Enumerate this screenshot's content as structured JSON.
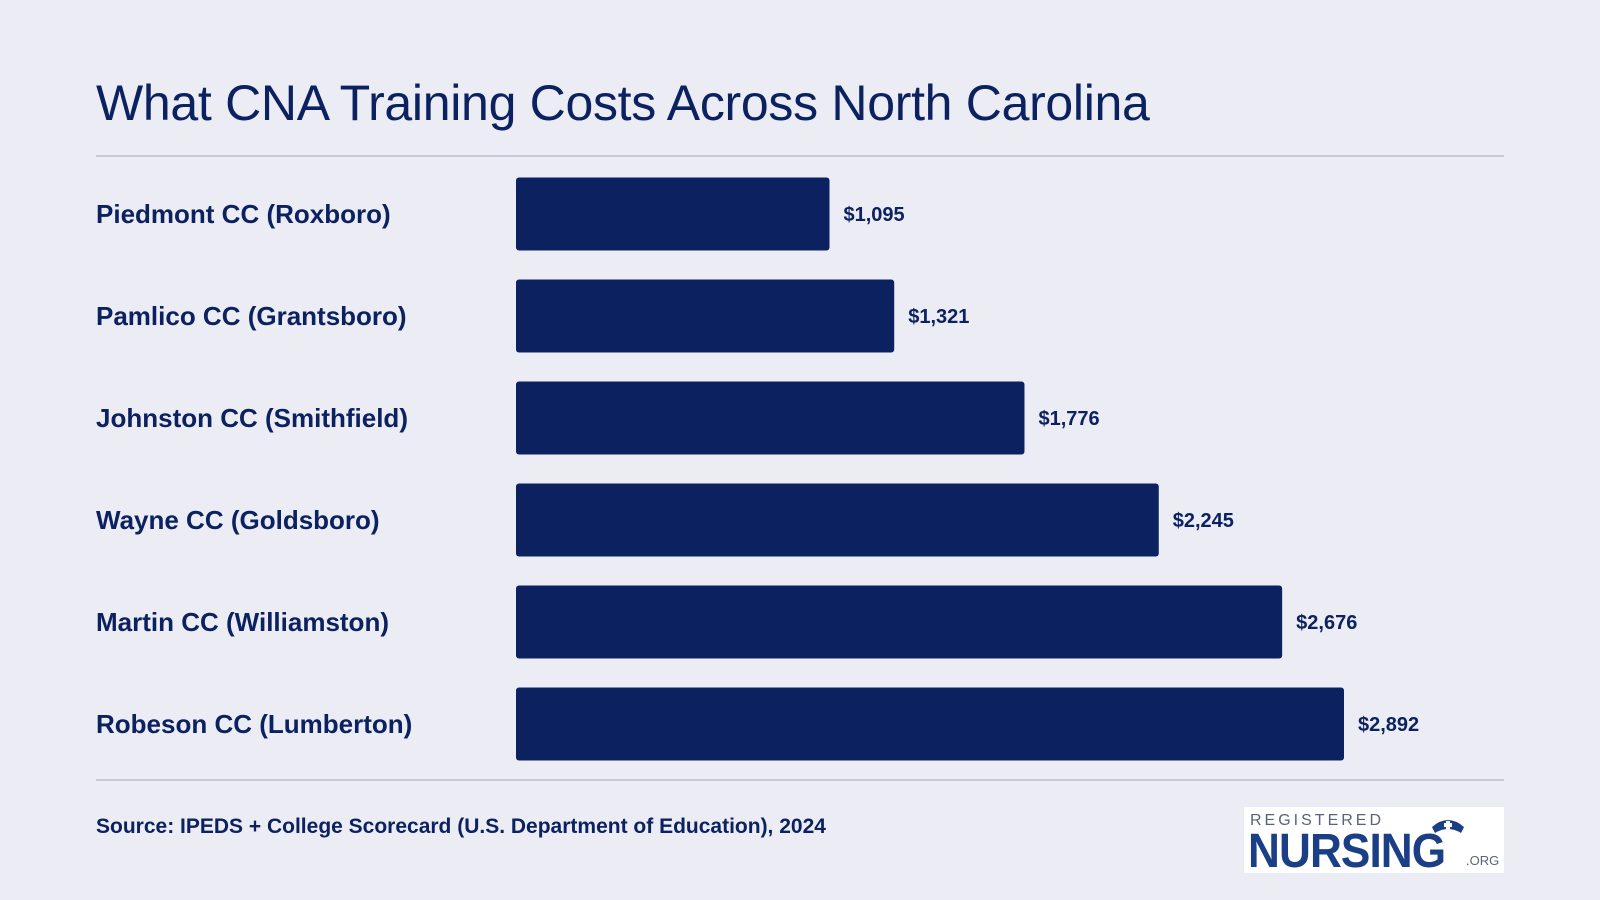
{
  "chart_data": {
    "type": "bar",
    "orientation": "horizontal",
    "title": "What CNA Training Costs Across North Carolina",
    "categories": [
      "Piedmont CC (Roxboro)",
      "Pamlico CC (Grantsboro)",
      "Johnston CC (Smithfield)",
      "Wayne CC (Goldsboro)",
      "Martin CC (Williamston)",
      "Robeson CC (Lumberton)"
    ],
    "values": [
      1095,
      1321,
      1776,
      2245,
      2676,
      2892
    ],
    "value_labels": [
      "$1,095",
      "$1,321",
      "$1,776",
      "$2,245",
      "$2,676",
      "$2,892"
    ],
    "xlim": [
      0,
      2892
    ],
    "grid": false,
    "legend": "none",
    "bar_color": "#0b2160"
  },
  "source": "Source: IPEDS + College Scorecard (U.S. Department of Education), 2024",
  "logo": {
    "top_text": "REGISTERED",
    "main_text": "NURSING",
    "suffix": ".ORG"
  },
  "colors": {
    "background": "#ecedf4",
    "text": "#0b2160",
    "bar": "#0b2160",
    "rule": "#c7c9d3",
    "logo_blue": "#1b3f87"
  },
  "icons": {
    "logo_cap": "nurse-cap-icon"
  }
}
